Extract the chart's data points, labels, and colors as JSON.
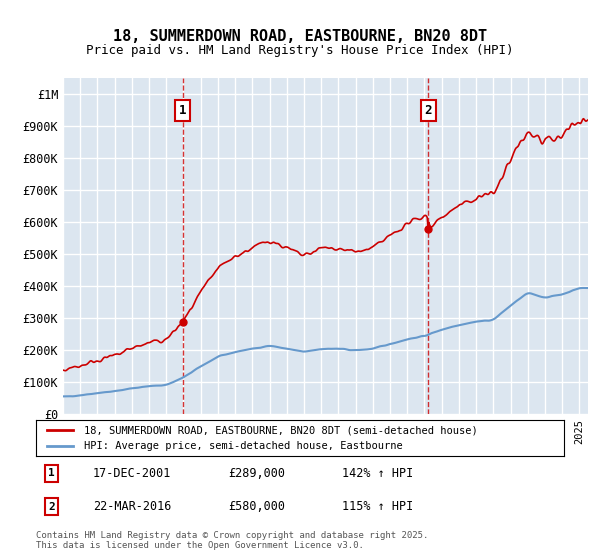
{
  "title": "18, SUMMERDOWN ROAD, EASTBOURNE, BN20 8DT",
  "subtitle": "Price paid vs. HM Land Registry's House Price Index (HPI)",
  "bg_color": "#dce6f0",
  "plot_bg_color": "#dce6f0",
  "red_color": "#cc0000",
  "blue_color": "#6699cc",
  "legend_label_red": "18, SUMMERDOWN ROAD, EASTBOURNE, BN20 8DT (semi-detached house)",
  "legend_label_blue": "HPI: Average price, semi-detached house, Eastbourne",
  "annotation1_label": "1",
  "annotation1_date": "17-DEC-2001",
  "annotation1_price": "£289,000",
  "annotation1_hpi": "142% ↑ HPI",
  "annotation2_label": "2",
  "annotation2_date": "22-MAR-2016",
  "annotation2_price": "£580,000",
  "annotation2_hpi": "115% ↑ HPI",
  "copyright": "Contains HM Land Registry data © Crown copyright and database right 2025.\nThis data is licensed under the Open Government Licence v3.0.",
  "ylim": [
    0,
    1050000
  ],
  "yticks": [
    0,
    100000,
    200000,
    300000,
    400000,
    500000,
    600000,
    700000,
    800000,
    900000,
    1000000
  ],
  "ytick_labels": [
    "£0",
    "£100K",
    "£200K",
    "£300K",
    "£400K",
    "£500K",
    "£600K",
    "£700K",
    "£800K",
    "£900K",
    "£1M"
  ],
  "vline1_x": 2001.96,
  "vline2_x": 2016.22,
  "sale1_x": 2001.96,
  "sale1_y": 289000,
  "sale2_x": 2016.22,
  "sale2_y": 580000,
  "xmin": 1995,
  "xmax": 2025.5
}
